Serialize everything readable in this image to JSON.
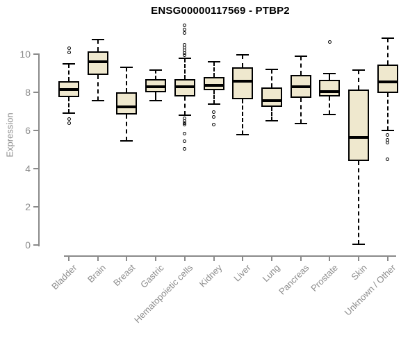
{
  "title": "ENSG00000117569 - PTBP2",
  "colors": {
    "box_fill": "#EFE8CE",
    "box_border": "#000000",
    "axis": "#8A8A8A",
    "axis_text": "#8C8C8C",
    "title_text": "#000000"
  },
  "chart_data": {
    "type": "boxplot",
    "title": "ENSG00000117569 - PTBP2",
    "xlabel": "",
    "ylabel": "Expression",
    "ylim": [
      0,
      11.6
    ],
    "y_ticks": [
      0,
      2,
      4,
      6,
      8,
      10
    ],
    "grid": false,
    "legend": "none",
    "categories": [
      "Bladder",
      "Brain",
      "Breast",
      "Gastric",
      "Hematopoietic cells",
      "Kidney",
      "Liver",
      "Lung",
      "Pancreas",
      "Prostate",
      "Skin",
      "Unknown / Other"
    ],
    "series": [
      {
        "name": "Bladder",
        "low": 6.9,
        "q1": 7.75,
        "median": 8.15,
        "q3": 8.6,
        "high": 9.5,
        "outliers": [
          10.3,
          10.1,
          6.6,
          6.4
        ]
      },
      {
        "name": "Brain",
        "low": 7.55,
        "q1": 8.9,
        "median": 9.6,
        "q3": 10.15,
        "high": 10.75,
        "outliers": []
      },
      {
        "name": "Breast",
        "low": 5.45,
        "q1": 6.85,
        "median": 7.25,
        "q3": 8.0,
        "high": 9.3,
        "outliers": []
      },
      {
        "name": "Gastric",
        "low": 7.55,
        "q1": 8.0,
        "median": 8.3,
        "q3": 8.7,
        "high": 9.15,
        "outliers": []
      },
      {
        "name": "Hematopoietic cells",
        "low": 6.8,
        "q1": 7.8,
        "median": 8.3,
        "q3": 8.7,
        "high": 9.8,
        "outliers": [
          11.5,
          11.3,
          11.1,
          10.5,
          10.35,
          10.2,
          10.05,
          9.95,
          6.65,
          6.5,
          6.4,
          6.3,
          5.85,
          5.45,
          5.05
        ]
      },
      {
        "name": "Kidney",
        "low": 7.4,
        "q1": 8.1,
        "median": 8.35,
        "q3": 8.8,
        "high": 9.6,
        "outliers": [
          6.95,
          6.7,
          6.3
        ]
      },
      {
        "name": "Liver",
        "low": 5.8,
        "q1": 7.65,
        "median": 8.6,
        "q3": 9.3,
        "high": 9.95,
        "outliers": []
      },
      {
        "name": "Lung",
        "low": 6.5,
        "q1": 7.25,
        "median": 7.55,
        "q3": 8.25,
        "high": 9.2,
        "outliers": []
      },
      {
        "name": "Pancreas",
        "low": 6.35,
        "q1": 7.7,
        "median": 8.3,
        "q3": 8.9,
        "high": 9.9,
        "outliers": []
      },
      {
        "name": "Prostate",
        "low": 6.85,
        "q1": 7.8,
        "median": 8.05,
        "q3": 8.65,
        "high": 9.0,
        "outliers": [
          10.65
        ]
      },
      {
        "name": "Skin",
        "low": 0.05,
        "q1": 4.4,
        "median": 5.65,
        "q3": 8.15,
        "high": 9.15,
        "outliers": []
      },
      {
        "name": "Unknown / Other",
        "low": 6.0,
        "q1": 7.95,
        "median": 8.55,
        "q3": 9.45,
        "high": 10.85,
        "outliers": [
          5.75,
          5.5,
          5.35,
          4.5
        ]
      }
    ]
  }
}
